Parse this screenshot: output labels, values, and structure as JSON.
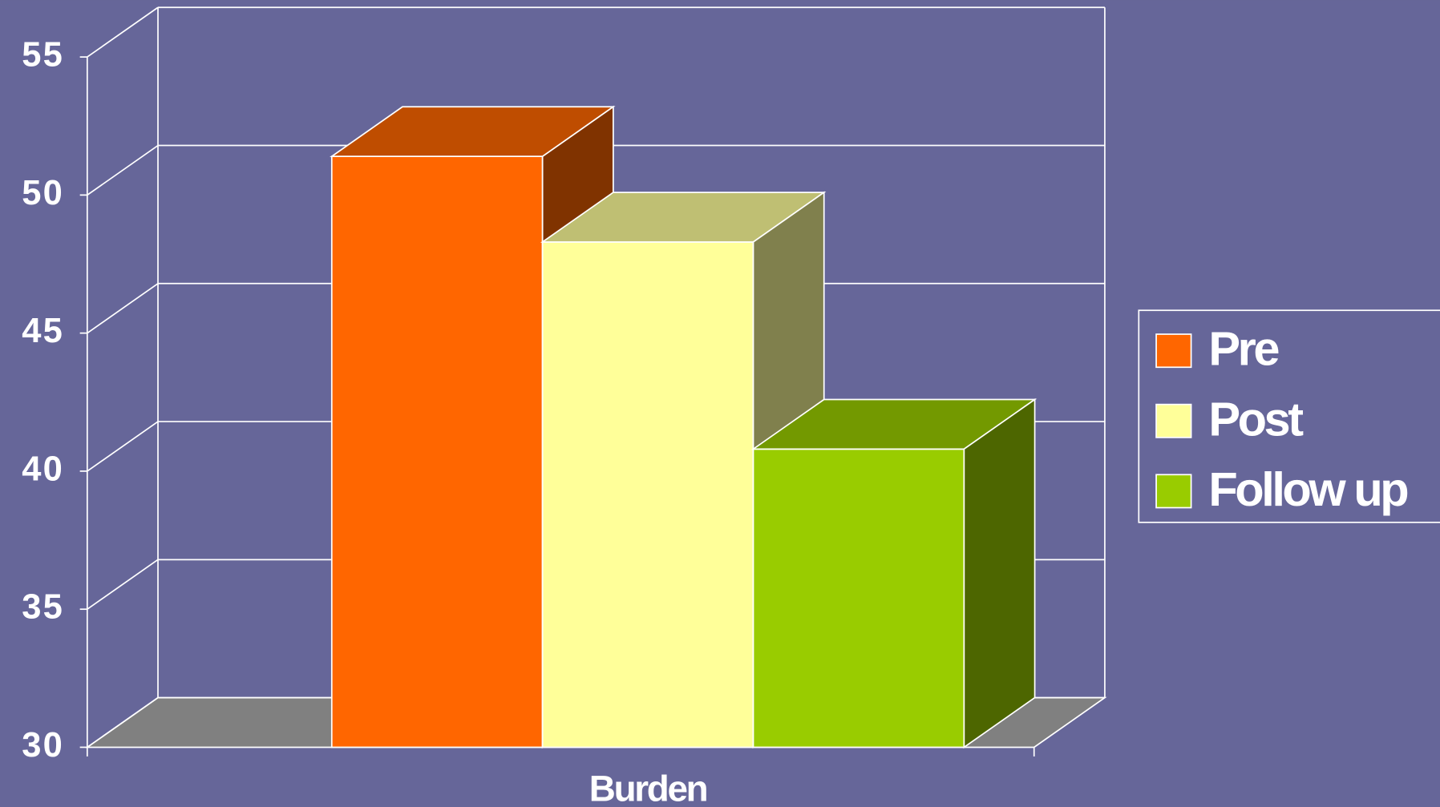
{
  "chart_data": {
    "type": "bar3d",
    "categories": [
      "Burden"
    ],
    "series": [
      {
        "name": "Pre",
        "color": "#ff6600",
        "values": [
          51.4
        ]
      },
      {
        "name": "Post",
        "color": "#ffff99",
        "values": [
          48.3
        ]
      },
      {
        "name": "Follow up",
        "color": "#99cc00",
        "values": [
          40.8
        ]
      }
    ],
    "ylim": [
      30,
      55
    ],
    "yticks": [
      30,
      35,
      40,
      45,
      50,
      55
    ],
    "grid": true
  }
}
